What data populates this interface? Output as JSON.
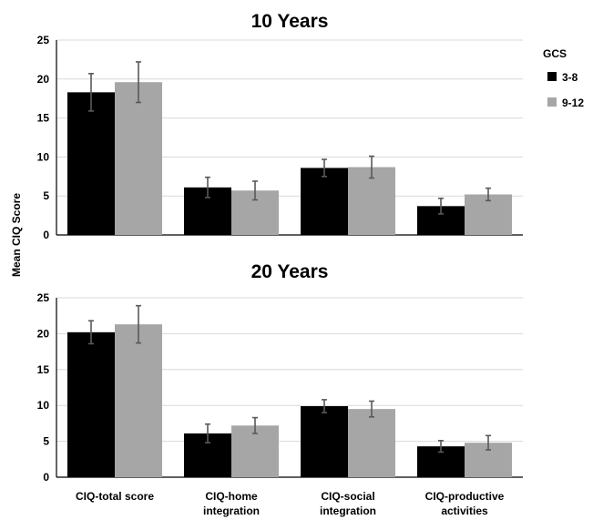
{
  "chart_data": [
    {
      "type": "bar",
      "title": "10 Years",
      "categories": [
        "CIQ-total score",
        "CIQ-home integration",
        "CIQ-social integration",
        "CIQ-productive activities"
      ],
      "category_lines": [
        [
          "CIQ-total score"
        ],
        [
          "CIQ-home",
          "integration"
        ],
        [
          "CIQ-social",
          "integration"
        ],
        [
          "CIQ-productive",
          "activities"
        ]
      ],
      "series": [
        {
          "name": "3-8",
          "color": "#000000",
          "values": [
            18.3,
            6.1,
            8.6,
            3.7
          ],
          "error": [
            2.4,
            1.3,
            1.1,
            1.0
          ]
        },
        {
          "name": "9-12",
          "color": "#a6a6a6",
          "values": [
            19.6,
            5.7,
            8.7,
            5.2
          ],
          "error": [
            2.6,
            1.2,
            1.4,
            0.8
          ]
        }
      ],
      "ylim": [
        0,
        25
      ],
      "yticks": [
        0,
        5,
        10,
        15,
        20,
        25
      ],
      "grid": true
    },
    {
      "type": "bar",
      "title": "20 Years",
      "categories": [
        "CIQ-total score",
        "CIQ-home integration",
        "CIQ-social integration",
        "CIQ-productive activities"
      ],
      "category_lines": [
        [
          "CIQ-total score"
        ],
        [
          "CIQ-home",
          "integration"
        ],
        [
          "CIQ-social",
          "integration"
        ],
        [
          "CIQ-productive",
          "activities"
        ]
      ],
      "series": [
        {
          "name": "3-8",
          "color": "#000000",
          "values": [
            20.2,
            6.1,
            9.9,
            4.3
          ],
          "error": [
            1.6,
            1.3,
            0.9,
            0.8
          ]
        },
        {
          "name": "9-12",
          "color": "#a6a6a6",
          "values": [
            21.3,
            7.2,
            9.5,
            4.8
          ],
          "error": [
            2.6,
            1.1,
            1.1,
            1.0
          ]
        }
      ],
      "ylim": [
        0,
        25
      ],
      "yticks": [
        0,
        5,
        10,
        15,
        20,
        25
      ],
      "grid": true
    }
  ],
  "shared_ylabel": "Mean  CIQ Score",
  "legend": {
    "title": "GCS",
    "items": [
      {
        "label": "3-8",
        "color": "#000000"
      },
      {
        "label": "9-12",
        "color": "#a6a6a6"
      }
    ],
    "placement": "top-right"
  }
}
